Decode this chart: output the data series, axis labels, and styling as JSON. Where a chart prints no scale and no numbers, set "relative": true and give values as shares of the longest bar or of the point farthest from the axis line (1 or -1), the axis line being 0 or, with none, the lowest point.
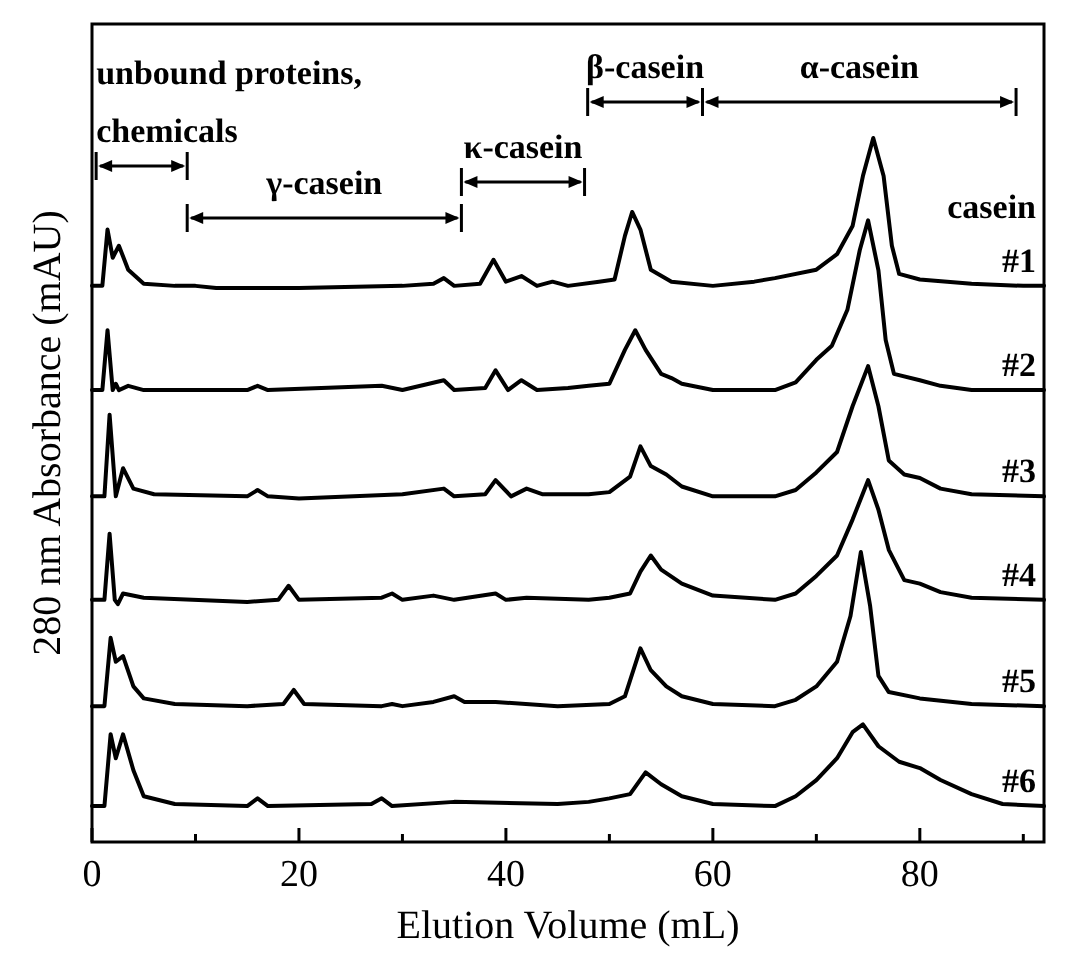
{
  "chart_data": {
    "type": "line",
    "relative": true,
    "xlabel": "Elution Volume (mL)",
    "ylabel": "280 nm Absorbance (mAU)",
    "xlim": [
      0,
      92
    ],
    "xticks": [
      0,
      {
        "value": 10,
        "label": null
      },
      20,
      {
        "value": 30,
        "label": null
      },
      40,
      {
        "value": 50,
        "label": null
      },
      60,
      {
        "value": 70,
        "label": null
      },
      80,
      {
        "value": 90,
        "label": null
      }
    ],
    "tick_labels": "x",
    "series": [
      {
        "name": "#1",
        "color": "#000000",
        "x": [
          0,
          1.0,
          1.5,
          2.0,
          2.6,
          3.5,
          5,
          8,
          10,
          12,
          20,
          30,
          33,
          34,
          35,
          37.5,
          38.8,
          40,
          41.5,
          43,
          44.5,
          46,
          49,
          50.5,
          51.5,
          52.2,
          53,
          54,
          56,
          60,
          64,
          66,
          70,
          72,
          73.5,
          74.5,
          75.5,
          76.5,
          77.3,
          78,
          80,
          85,
          90,
          92
        ],
        "values": [
          0.79,
          0.79,
          0.87,
          0.83,
          0.847,
          0.813,
          0.793,
          0.79,
          0.79,
          0.787,
          0.787,
          0.79,
          0.793,
          0.801,
          0.79,
          0.793,
          0.827,
          0.796,
          0.804,
          0.79,
          0.796,
          0.79,
          0.796,
          0.799,
          0.861,
          0.895,
          0.87,
          0.813,
          0.796,
          0.79,
          0.796,
          0.801,
          0.813,
          0.835,
          0.875,
          0.946,
          1.0,
          0.946,
          0.847,
          0.807,
          0.799,
          0.793,
          0.79,
          0.79
        ]
      },
      {
        "name": "#2",
        "color": "#000000",
        "x": [
          0,
          1.0,
          1.5,
          2.0,
          2.3,
          2.6,
          3.5,
          5,
          15,
          16,
          17,
          28,
          30,
          34,
          35,
          38,
          39,
          40.2,
          41.5,
          43,
          46,
          48,
          50,
          51.5,
          52.5,
          53.5,
          55,
          56,
          57,
          60,
          66,
          68,
          70,
          71.5,
          73,
          74.2,
          75,
          76,
          76.7,
          77.5,
          80,
          82,
          85,
          92
        ],
        "values": [
          0.642,
          0.642,
          0.727,
          0.642,
          0.651,
          0.642,
          0.648,
          0.642,
          0.642,
          0.648,
          0.642,
          0.648,
          0.642,
          0.656,
          0.642,
          0.645,
          0.67,
          0.642,
          0.656,
          0.642,
          0.645,
          0.648,
          0.651,
          0.699,
          0.727,
          0.699,
          0.665,
          0.659,
          0.651,
          0.642,
          0.642,
          0.653,
          0.685,
          0.705,
          0.756,
          0.841,
          0.883,
          0.812,
          0.713,
          0.665,
          0.656,
          0.648,
          0.642,
          0.642
        ]
      },
      {
        "name": "#3",
        "color": "#000000",
        "x": [
          0,
          1.2,
          1.7,
          2.3,
          3.0,
          4,
          6,
          15,
          16,
          17,
          20,
          30,
          34,
          35,
          38,
          39,
          40.5,
          42,
          43.5,
          48,
          50,
          52,
          53,
          54,
          55.5,
          57,
          60,
          66,
          68,
          70,
          72,
          73.5,
          75,
          76,
          77,
          78.5,
          80,
          82,
          85,
          92
        ],
        "values": [
          0.491,
          0.491,
          0.607,
          0.491,
          0.531,
          0.502,
          0.494,
          0.491,
          0.5,
          0.491,
          0.488,
          0.494,
          0.502,
          0.491,
          0.494,
          0.514,
          0.491,
          0.502,
          0.494,
          0.494,
          0.497,
          0.519,
          0.562,
          0.534,
          0.522,
          0.505,
          0.491,
          0.491,
          0.5,
          0.525,
          0.554,
          0.619,
          0.676,
          0.619,
          0.542,
          0.522,
          0.517,
          0.502,
          0.494,
          0.491
        ]
      },
      {
        "name": "#4",
        "color": "#000000",
        "x": [
          0,
          1.2,
          1.7,
          2.2,
          2.5,
          3,
          5,
          15,
          18,
          19,
          20,
          28,
          29,
          30,
          33,
          35,
          39,
          40,
          42,
          48,
          50,
          52,
          53,
          54,
          55,
          57,
          60,
          66,
          68,
          70,
          72,
          73.5,
          75,
          76,
          77,
          78.5,
          80,
          82,
          85,
          92
        ],
        "values": [
          0.344,
          0.344,
          0.438,
          0.344,
          0.338,
          0.353,
          0.347,
          0.341,
          0.344,
          0.364,
          0.344,
          0.347,
          0.353,
          0.344,
          0.35,
          0.344,
          0.353,
          0.344,
          0.347,
          0.344,
          0.347,
          0.353,
          0.384,
          0.407,
          0.387,
          0.367,
          0.35,
          0.344,
          0.353,
          0.378,
          0.407,
          0.458,
          0.514,
          0.472,
          0.415,
          0.372,
          0.367,
          0.355,
          0.347,
          0.344
        ]
      },
      {
        "name": "#5",
        "color": "#000000",
        "x": [
          0,
          1.2,
          1.8,
          2.3,
          3.0,
          4,
          5,
          8,
          15,
          18.5,
          19.5,
          20.5,
          28,
          29,
          30,
          33,
          35,
          36,
          39,
          45,
          50,
          51.5,
          53,
          54,
          55.5,
          57,
          60,
          66,
          68,
          70,
          72,
          73.3,
          74.3,
          75.2,
          76,
          77,
          80,
          85,
          92
        ],
        "values": [
          0.193,
          0.193,
          0.29,
          0.256,
          0.264,
          0.221,
          0.204,
          0.196,
          0.193,
          0.196,
          0.216,
          0.196,
          0.193,
          0.196,
          0.193,
          0.199,
          0.207,
          0.199,
          0.199,
          0.193,
          0.196,
          0.207,
          0.275,
          0.244,
          0.221,
          0.207,
          0.196,
          0.193,
          0.202,
          0.221,
          0.256,
          0.321,
          0.412,
          0.335,
          0.236,
          0.213,
          0.204,
          0.196,
          0.193
        ]
      },
      {
        "name": "#6",
        "color": "#000000",
        "x": [
          0,
          1.2,
          1.8,
          2.3,
          3.0,
          4,
          5,
          8,
          15,
          16,
          17,
          27,
          28,
          29,
          35,
          45,
          48,
          50,
          52,
          53.5,
          55,
          57,
          60,
          66,
          68,
          70,
          72,
          73.5,
          74.5,
          76,
          78,
          80,
          82,
          85,
          88,
          92
        ],
        "values": [
          0.051,
          0.051,
          0.153,
          0.119,
          0.153,
          0.102,
          0.065,
          0.054,
          0.051,
          0.062,
          0.051,
          0.054,
          0.062,
          0.051,
          0.057,
          0.054,
          0.057,
          0.062,
          0.068,
          0.099,
          0.082,
          0.065,
          0.054,
          0.051,
          0.065,
          0.088,
          0.119,
          0.156,
          0.167,
          0.136,
          0.114,
          0.105,
          0.088,
          0.068,
          0.054,
          0.051
        ]
      }
    ],
    "annotations": [
      "unbound proteins, chemicals",
      "γ-casein",
      "κ-casein",
      "β-casein",
      "α-casein",
      "casein"
    ]
  }
}
